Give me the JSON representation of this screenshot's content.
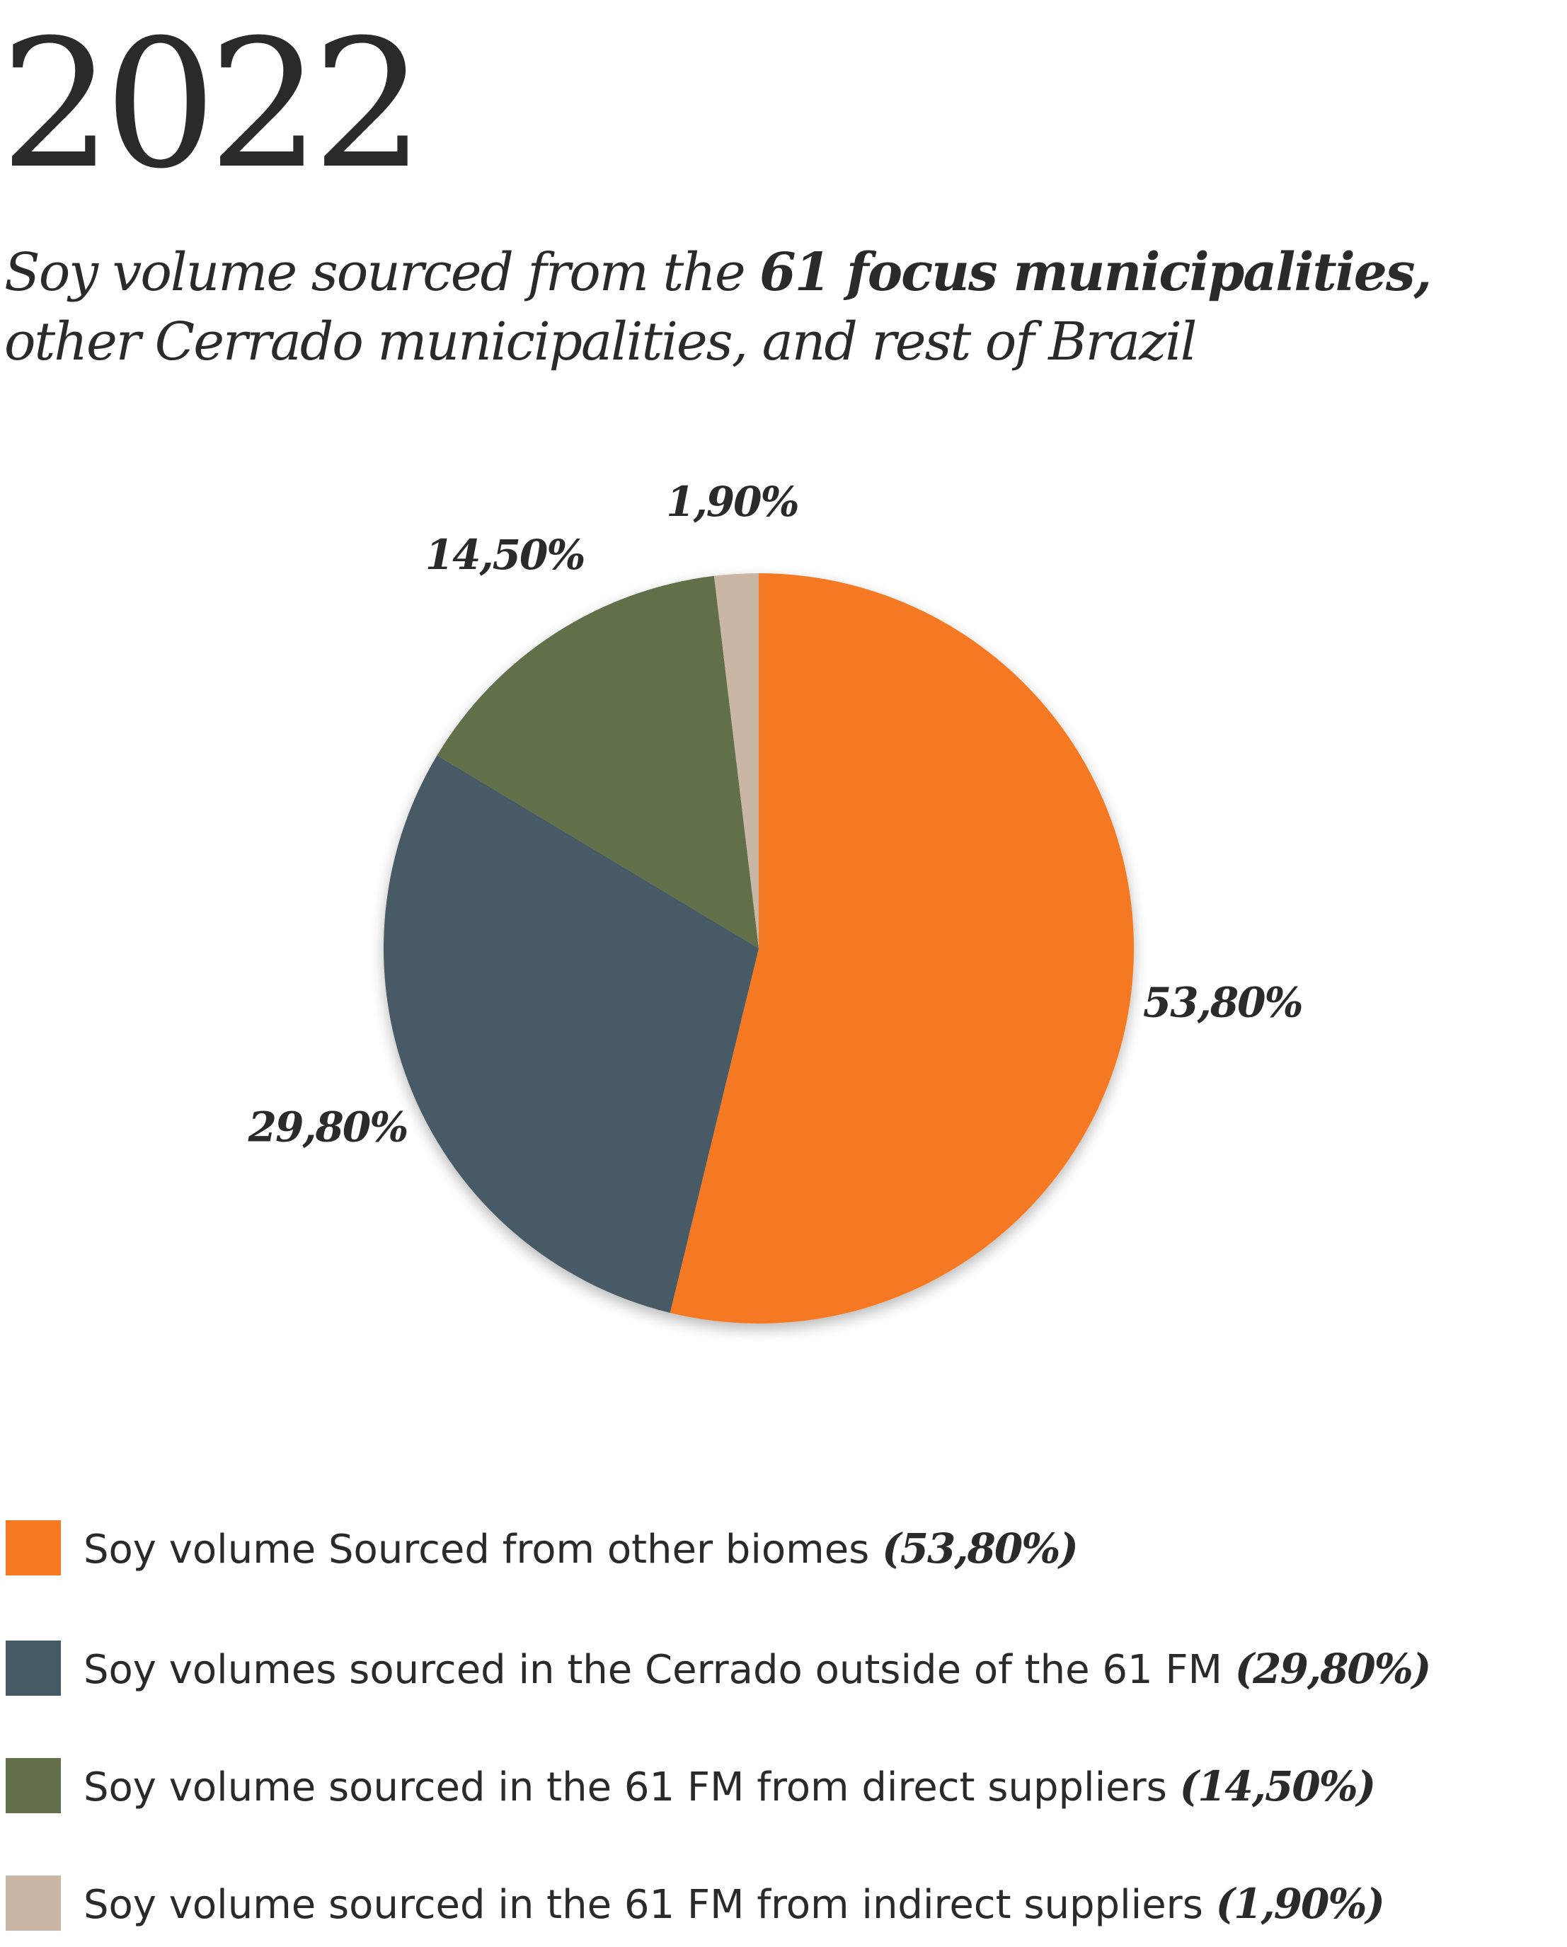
{
  "header": {
    "year": "2022",
    "subtitle_prefix": "Soy volume sourced from the ",
    "subtitle_bold": "61 focus municipalities,",
    "subtitle_line2": "other Cerrado municipalities, and rest of Brazil"
  },
  "chart_data": {
    "type": "pie",
    "title": "Soy volume sourced from the 61 focus municipalities, other Cerrado municipalities, and rest of Brazil",
    "start_angle_deg": 0,
    "direction": "clockwise",
    "slices": [
      {
        "label": "Soy volume Sourced from other biomes",
        "value": 53.8,
        "display": "53,80%",
        "color": "#F47920"
      },
      {
        "label": "Soy volumes sourced in the Cerrado outside of the 61 FM",
        "value": 29.8,
        "display": "29,80%",
        "color": "#465A66"
      },
      {
        "label": "Soy volume sourced in the 61 FM from direct suppliers",
        "value": 14.5,
        "display": "14,50%",
        "color": "#626F4A"
      },
      {
        "label": "Soy volume sourced in the 61 FM from indirect suppliers",
        "value": 1.9,
        "display": "1,90%",
        "color": "#CAB6A5"
      }
    ]
  },
  "legend": {
    "items": [
      {
        "text": "Soy volume Sourced from other biomes ",
        "pct": "(53,80%)",
        "color": "#F47920"
      },
      {
        "text": "Soy volumes sourced in the Cerrado outside of the 61 FM ",
        "pct": "(29,80%)",
        "color": "#465A66"
      },
      {
        "text": "Soy volume sourced in the 61 FM from direct suppliers ",
        "pct": "(14,50%)",
        "color": "#626F4A"
      },
      {
        "text": "Soy volume sourced in the 61 FM from indirect suppliers ",
        "pct": "(1,90%)",
        "color": "#CAB6A5"
      }
    ]
  }
}
